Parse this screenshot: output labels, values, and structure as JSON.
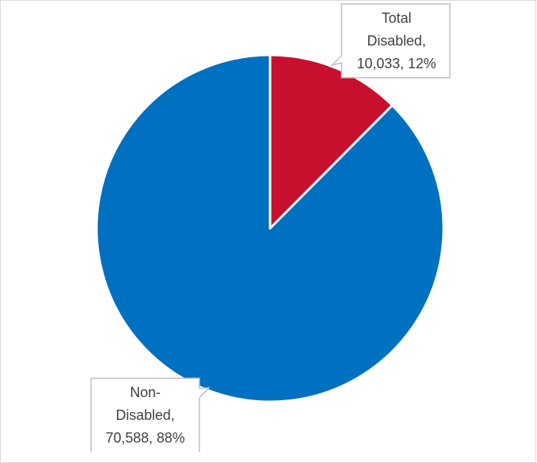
{
  "chart_data": {
    "type": "pie",
    "start_angle_deg": 0,
    "direction": "clockwise",
    "slices": [
      {
        "name": "Total Disabled",
        "value": 10033,
        "percent": 12,
        "color": "#c8102e",
        "label_lines": [
          "Total",
          "Disabled,",
          "10,033, 12%"
        ]
      },
      {
        "name": "Non-Disabled",
        "value": 70588,
        "percent": 88,
        "color": "#0070c0",
        "label_lines": [
          "Non-",
          "Disabled,",
          "70,588, 88%"
        ]
      }
    ],
    "slice_border_color": "#ffffff",
    "legend": "none"
  }
}
